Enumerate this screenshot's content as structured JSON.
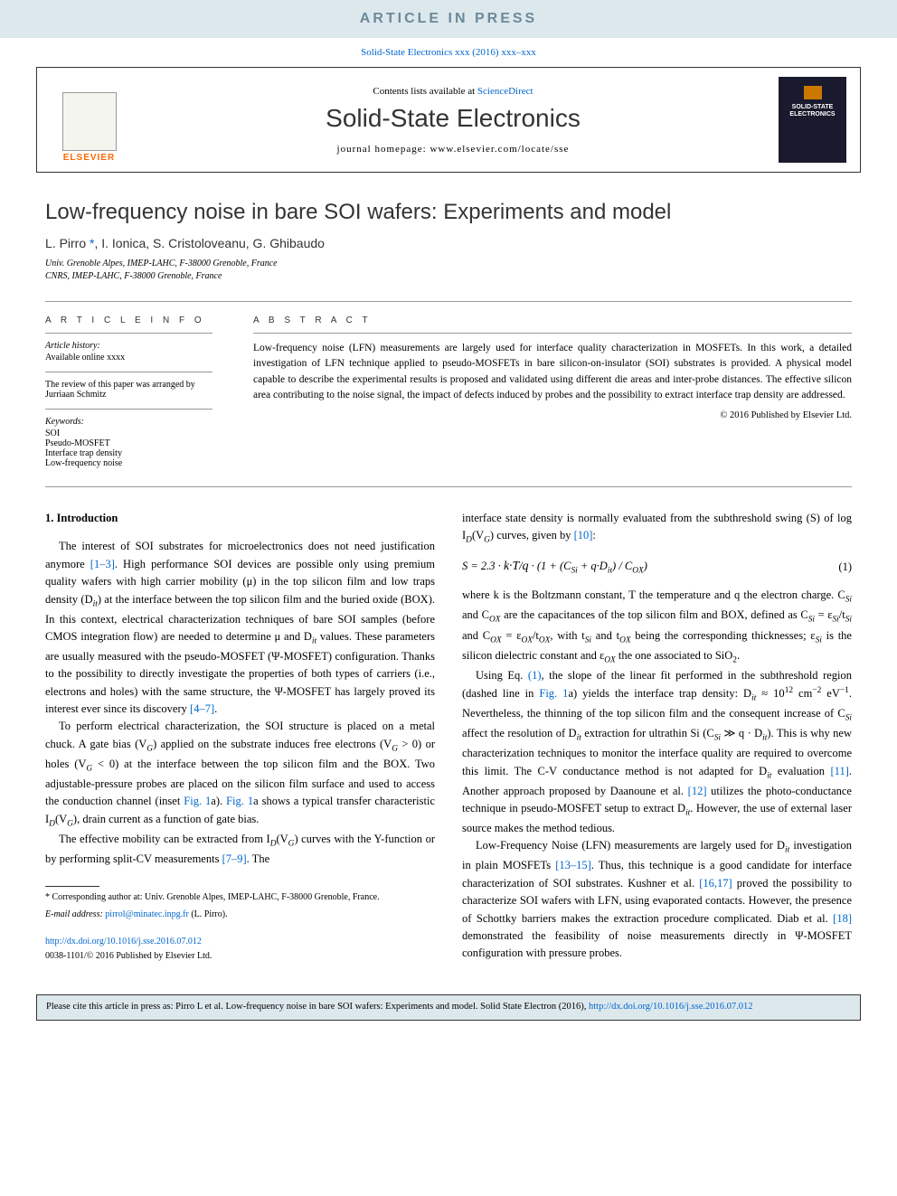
{
  "banner": {
    "text": "ARTICLE IN PRESS"
  },
  "journalRef": {
    "text": "Solid-State Electronics xxx (2016) xxx–xxx",
    "contentsPrefix": "Contents lists available at ",
    "contentsLink": "ScienceDirect",
    "journalName": "Solid-State Electronics",
    "homepagePrefix": "journal homepage: ",
    "homepage": "www.elsevier.com/locate/sse",
    "elsevier": "ELSEVIER",
    "coverTitle": "SOLID-STATE ELECTRONICS"
  },
  "article": {
    "title": "Low-frequency noise in bare SOI wafers: Experiments and model",
    "authors": "L. Pirro *, I. Ionica, S. Cristoloveanu, G. Ghibaudo",
    "aff1": "Univ. Grenoble Alpes, IMEP-LAHC, F-38000 Grenoble, France",
    "aff2": "CNRS, IMEP-LAHC, F-38000 Grenoble, France"
  },
  "info": {
    "heading": "A R T I C L E   I N F O",
    "historyLabel": "Article history:",
    "historyText": "Available online xxxx",
    "reviewText": "The review of this paper was arranged by Jurriaan Schmitz",
    "keywordsLabel": "Keywords:",
    "kw1": "SOI",
    "kw2": "Pseudo-MOSFET",
    "kw3": "Interface trap density",
    "kw4": "Low-frequency noise"
  },
  "abstract": {
    "heading": "A B S T R A C T",
    "text": "Low-frequency noise (LFN) measurements are largely used for interface quality characterization in MOSFETs. In this work, a detailed investigation of LFN technique applied to pseudo-MOSFETs in bare silicon-on-insulator (SOI) substrates is provided. A physical model capable to describe the experimental results is proposed and validated using different die areas and inter-probe distances. The effective silicon area contributing to the noise signal, the impact of defects induced by probes and the possibility to extract interface trap density are addressed.",
    "copyright": "© 2016 Published by Elsevier Ltd."
  },
  "body": {
    "sec1": "1. Introduction",
    "c1p1a": "The interest of SOI substrates for microelectronics does not need justification anymore ",
    "c1p1link1": "[1–3]",
    "c1p1b": ". High performance SOI devices are possible only using premium quality wafers with high carrier mobility (μ) in the top silicon film and low traps density (D",
    "c1p1c": ") at the interface between the top silicon film and the buried oxide (BOX). In this context, electrical characterization techniques of bare SOI samples (before CMOS integration flow) are needed to determine μ and D",
    "c1p1d": " values. These parameters are usually measured with the pseudo-MOSFET (Ψ-MOSFET) configuration. Thanks to the possibility to directly investigate the properties of both types of carriers (i.e., electrons and holes) with the same structure, the Ψ-MOSFET has largely proved its interest ever since its discovery ",
    "c1p1link2": "[4–7]",
    "c1p2a": "To perform electrical characterization, the SOI structure is placed on a metal chuck. A gate bias (V",
    "c1p2b": ") applied on the substrate induces free electrons (V",
    "c1p2c": " > 0) or holes (V",
    "c1p2d": " < 0) at the interface between the top silicon film and the BOX. Two adjustable-pressure probes are placed on the silicon film surface and used to access the conduction channel (inset ",
    "c1p2link1": "Fig. 1",
    "c1p2e": "a). ",
    "c1p2link2": "Fig. 1",
    "c1p2f": "a shows a typical transfer characteristic I",
    "c1p2g": "(V",
    "c1p2h": "), drain current as a function of gate bias.",
    "c1p3a": "The effective mobility can be extracted from I",
    "c1p3b": "(V",
    "c1p3c": ") curves with the Y-function or by performing split-CV measurements ",
    "c1p3link1": "[7–9]",
    "c1p3d": ". The",
    "c2p1a": "interface state density is normally evaluated from the subthreshold swing (S) of log I",
    "c2p1b": "(V",
    "c2p1c": ") curves, given by ",
    "c2p1link1": "[10]",
    "eq1": "S = 2.3 · (k·T / q) · (1 + (C_Si + q·D_it) / C_OX)",
    "eq1num": "(1)",
    "c2p2a": "where k is the Boltzmann constant, T the temperature and q the electron charge. C",
    "c2p2b": " and C",
    "c2p2c": " are the capacitances of the top silicon film and BOX, defined as C",
    "c2p2d": " = ε",
    "c2p2e": "/t",
    "c2p2f": " and C",
    "c2p2g": " = ε",
    "c2p2h": "/t",
    "c2p2i": ", with t",
    "c2p2j": " and t",
    "c2p2k": " being the corresponding thicknesses; ε",
    "c2p2l": " is the silicon dielectric constant and ε",
    "c2p2m": " the one associated to SiO",
    "c2p3a": "Using Eq. ",
    "c2p3link1": "(1)",
    "c2p3b": ", the slope of the linear fit performed in the subthreshold region (dashed line in ",
    "c2p3link2": "Fig. 1",
    "c2p3c": "a) yields the interface trap density: D",
    "c2p3d": " ≈ 10",
    "c2p3e": " cm",
    "c2p3f": " eV",
    "c2p3g": ". Nevertheless, the thinning of the top silicon film and the consequent increase of C",
    "c2p3h": " affect the resolution of D",
    "c2p3i": " extraction for ultrathin Si (C",
    "c2p3j": " ≫ q · D",
    "c2p3k": "). This is why new characterization techniques to monitor the interface quality are required to overcome this limit. The C-V conductance method is not adapted for D",
    "c2p3l": " evaluation ",
    "c2p3link3": "[11]",
    "c2p3m": ". Another approach proposed by Daanoune et al. ",
    "c2p3link4": "[12]",
    "c2p3n": " utilizes the photo-conductance technique in pseudo-MOSFET setup to extract D",
    "c2p3o": ". However, the use of external laser source makes the method tedious.",
    "c2p4a": "Low-Frequency Noise (LFN) measurements are largely used for D",
    "c2p4b": " investigation in plain MOSFETs ",
    "c2p4link1": "[13–15]",
    "c2p4c": ". Thus, this technique is a good candidate for interface characterization of SOI substrates. Kushner et al. ",
    "c2p4link2": "[16,17]",
    "c2p4d": " proved the possibility to characterize SOI wafers with LFN, using evaporated contacts. However, the presence of Schottky barriers makes the extraction procedure complicated. Diab et al. ",
    "c2p4link3": "[18]",
    "c2p4e": " demonstrated the feasibility of noise measurements directly in Ψ-MOSFET configuration with pressure probes."
  },
  "footnotes": {
    "corr": "* Corresponding author at: Univ. Grenoble Alpes, IMEP-LAHC, F-38000 Grenoble, France.",
    "emailLabel": "E-mail address: ",
    "email": "pirrol@minatec.inpg.fr",
    "emailSuffix": " (L. Pirro).",
    "doi": "http://dx.doi.org/10.1016/j.sse.2016.07.012",
    "issn": "0038-1101/© 2016 Published by Elsevier Ltd."
  },
  "citebox": {
    "prefix": "Please cite this article in press as: Pirro L et al. Low-frequency noise in bare SOI wafers: Experiments and model. Solid State Electron (2016), ",
    "link": "http://dx.doi.org/10.1016/j.sse.2016.07.012"
  }
}
